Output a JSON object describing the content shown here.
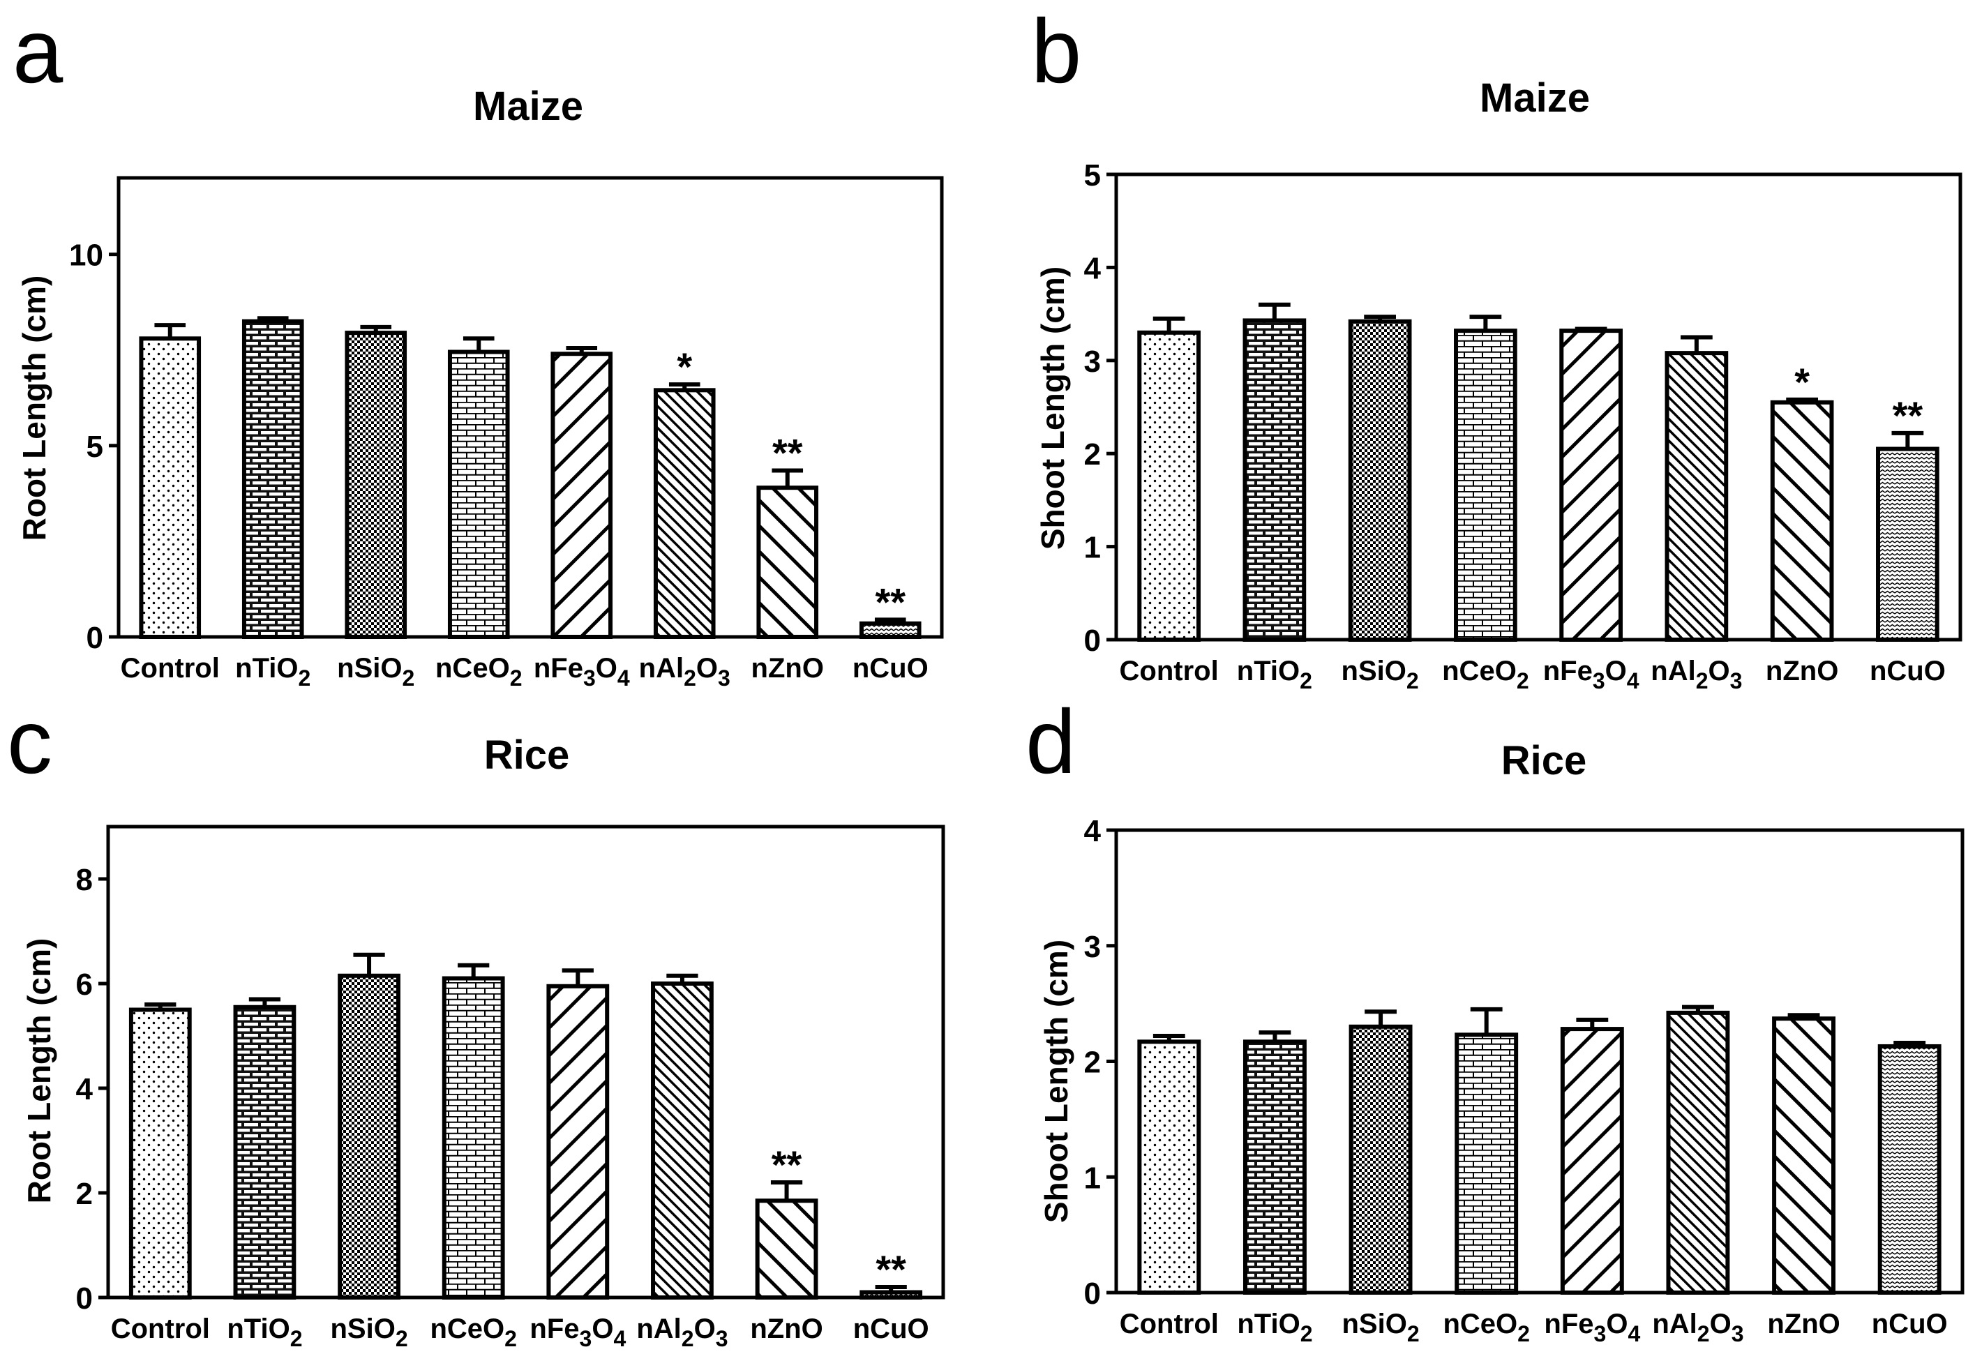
{
  "figure": {
    "panels": [
      {
        "label": "a"
      },
      {
        "label": "b"
      },
      {
        "label": "c"
      },
      {
        "label": "d"
      }
    ]
  },
  "chart_data": [
    {
      "type": "bar",
      "panel": "a",
      "title": "Maize",
      "xlabel": "",
      "ylabel": "Root Length (cm)",
      "categories": [
        "Control",
        "nTiO2",
        "nSiO2",
        "nCeO2",
        "nFe3O4",
        "nAl2O3",
        "nZnO",
        "nCuO"
      ],
      "category_labels": [
        {
          "base": "Control",
          "parts": []
        },
        {
          "base": "nTiO",
          "parts": [
            {
              "t": "2",
              "sub": true
            }
          ]
        },
        {
          "base": "nSiO",
          "parts": [
            {
              "t": "2",
              "sub": true
            }
          ]
        },
        {
          "base": "nCeO",
          "parts": [
            {
              "t": "2",
              "sub": true
            }
          ]
        },
        {
          "base": "nFe",
          "parts": [
            {
              "t": "3",
              "sub": true
            },
            {
              "t": "O",
              "sub": false
            },
            {
              "t": "4",
              "sub": true
            }
          ]
        },
        {
          "base": "nAl",
          "parts": [
            {
              "t": "2",
              "sub": true
            },
            {
              "t": "O",
              "sub": false
            },
            {
              "t": "3",
              "sub": true
            }
          ]
        },
        {
          "base": "nZnO",
          "parts": []
        },
        {
          "base": "nCuO",
          "parts": []
        }
      ],
      "values": [
        7.8,
        8.25,
        7.95,
        7.45,
        7.4,
        6.45,
        3.9,
        0.35
      ],
      "errors": [
        0.35,
        0.08,
        0.15,
        0.35,
        0.15,
        0.15,
        0.45,
        0.1
      ],
      "annotations": [
        "",
        "",
        "",
        "",
        "",
        "*",
        "**",
        "**"
      ],
      "ylim": [
        0,
        12
      ],
      "yticks": [
        0,
        5,
        10
      ],
      "yticklabels": [
        "0",
        "5",
        "10"
      ],
      "patterns": [
        "dots",
        "brick-dark",
        "checker",
        "brick-light",
        "diag-back",
        "diag-fwd-dense",
        "diag-fwd",
        "zigzag"
      ]
    },
    {
      "type": "bar",
      "panel": "b",
      "title": "Maize",
      "xlabel": "",
      "ylabel": "Shoot Length (cm)",
      "categories": [
        "Control",
        "nTiO2",
        "nSiO2",
        "nCeO2",
        "nFe3O4",
        "nAl2O3",
        "nZnO",
        "nCuO"
      ],
      "category_labels": [
        {
          "base": "Control",
          "parts": []
        },
        {
          "base": "nTiO",
          "parts": [
            {
              "t": "2",
              "sub": true
            }
          ]
        },
        {
          "base": "nSiO",
          "parts": [
            {
              "t": "2",
              "sub": true
            }
          ]
        },
        {
          "base": "nCeO",
          "parts": [
            {
              "t": "2",
              "sub": true
            }
          ]
        },
        {
          "base": "nFe",
          "parts": [
            {
              "t": "3",
              "sub": true
            },
            {
              "t": "O",
              "sub": false
            },
            {
              "t": "4",
              "sub": true
            }
          ]
        },
        {
          "base": "nAl",
          "parts": [
            {
              "t": "2",
              "sub": true
            },
            {
              "t": "O",
              "sub": false
            },
            {
              "t": "3",
              "sub": true
            }
          ]
        },
        {
          "base": "nZnO",
          "parts": []
        },
        {
          "base": "nCuO",
          "parts": []
        }
      ],
      "values": [
        3.3,
        3.43,
        3.42,
        3.32,
        3.32,
        3.08,
        2.55,
        2.05
      ],
      "errors": [
        0.15,
        0.17,
        0.05,
        0.15,
        0.02,
        0.17,
        0.03,
        0.17
      ],
      "annotations": [
        "",
        "",
        "",
        "",
        "",
        "",
        "*",
        "**"
      ],
      "ylim": [
        0,
        5
      ],
      "yticks": [
        0,
        1,
        2,
        3,
        4,
        5
      ],
      "yticklabels": [
        "0",
        "1",
        "2",
        "3",
        "4",
        "5"
      ],
      "patterns": [
        "dots",
        "brick-dark",
        "checker",
        "brick-light",
        "diag-back",
        "diag-fwd-dense",
        "diag-fwd",
        "zigzag"
      ]
    },
    {
      "type": "bar",
      "panel": "c",
      "title": "Rice",
      "xlabel": "",
      "ylabel": "Root Length (cm)",
      "categories": [
        "Control",
        "nTiO2",
        "nSiO2",
        "nCeO2",
        "nFe3O4",
        "nAl2O3",
        "nZnO",
        "nCuO"
      ],
      "category_labels": [
        {
          "base": "Control",
          "parts": []
        },
        {
          "base": "nTiO",
          "parts": [
            {
              "t": "2",
              "sub": true
            }
          ]
        },
        {
          "base": "nSiO",
          "parts": [
            {
              "t": "2",
              "sub": true
            }
          ]
        },
        {
          "base": "nCeO",
          "parts": [
            {
              "t": "2",
              "sub": true
            }
          ]
        },
        {
          "base": "nFe",
          "parts": [
            {
              "t": "3",
              "sub": true
            },
            {
              "t": "O",
              "sub": false
            },
            {
              "t": "4",
              "sub": true
            }
          ]
        },
        {
          "base": "nAl",
          "parts": [
            {
              "t": "2",
              "sub": true
            },
            {
              "t": "O",
              "sub": false
            },
            {
              "t": "3",
              "sub": true
            }
          ]
        },
        {
          "base": "nZnO",
          "parts": []
        },
        {
          "base": "nCuO",
          "parts": []
        }
      ],
      "values": [
        5.5,
        5.55,
        6.15,
        6.1,
        5.95,
        6.0,
        1.85,
        0.1
      ],
      "errors": [
        0.1,
        0.15,
        0.4,
        0.25,
        0.3,
        0.15,
        0.35,
        0.1
      ],
      "annotations": [
        "",
        "",
        "",
        "",
        "",
        "",
        "**",
        "**"
      ],
      "ylim": [
        0,
        9
      ],
      "yticks": [
        0,
        2,
        4,
        6,
        8
      ],
      "yticklabels": [
        "0",
        "2",
        "4",
        "6",
        "8"
      ],
      "patterns": [
        "dots",
        "brick-dark",
        "checker",
        "brick-light",
        "diag-back",
        "diag-fwd-dense",
        "diag-fwd",
        "zigzag"
      ]
    },
    {
      "type": "bar",
      "panel": "d",
      "title": "Rice",
      "xlabel": "",
      "ylabel": "Shoot Length (cm)",
      "categories": [
        "Control",
        "nTiO2",
        "nSiO2",
        "nCeO2",
        "nFe3O4",
        "nAl2O3",
        "nZnO",
        "nCuO"
      ],
      "category_labels": [
        {
          "base": "Control",
          "parts": []
        },
        {
          "base": "nTiO",
          "parts": [
            {
              "t": "2",
              "sub": true
            }
          ]
        },
        {
          "base": "nSiO",
          "parts": [
            {
              "t": "2",
              "sub": true
            }
          ]
        },
        {
          "base": "nCeO",
          "parts": [
            {
              "t": "2",
              "sub": true
            }
          ]
        },
        {
          "base": "nFe",
          "parts": [
            {
              "t": "3",
              "sub": true
            },
            {
              "t": "O",
              "sub": false
            },
            {
              "t": "4",
              "sub": true
            }
          ]
        },
        {
          "base": "nAl",
          "parts": [
            {
              "t": "2",
              "sub": true
            },
            {
              "t": "O",
              "sub": false
            },
            {
              "t": "3",
              "sub": true
            }
          ]
        },
        {
          "base": "nZnO",
          "parts": []
        },
        {
          "base": "nCuO",
          "parts": []
        }
      ],
      "values": [
        2.17,
        2.17,
        2.3,
        2.23,
        2.28,
        2.42,
        2.37,
        2.13
      ],
      "errors": [
        0.05,
        0.08,
        0.13,
        0.22,
        0.08,
        0.05,
        0.03,
        0.03
      ],
      "annotations": [
        "",
        "",
        "",
        "",
        "",
        "",
        "",
        ""
      ],
      "ylim": [
        0,
        4
      ],
      "yticks": [
        0,
        1,
        2,
        3,
        4
      ],
      "yticklabels": [
        "0",
        "1",
        "2",
        "3",
        "4"
      ],
      "patterns": [
        "dots",
        "brick-dark",
        "checker",
        "brick-light",
        "diag-back",
        "diag-fwd-dense",
        "diag-fwd",
        "zigzag"
      ]
    }
  ]
}
